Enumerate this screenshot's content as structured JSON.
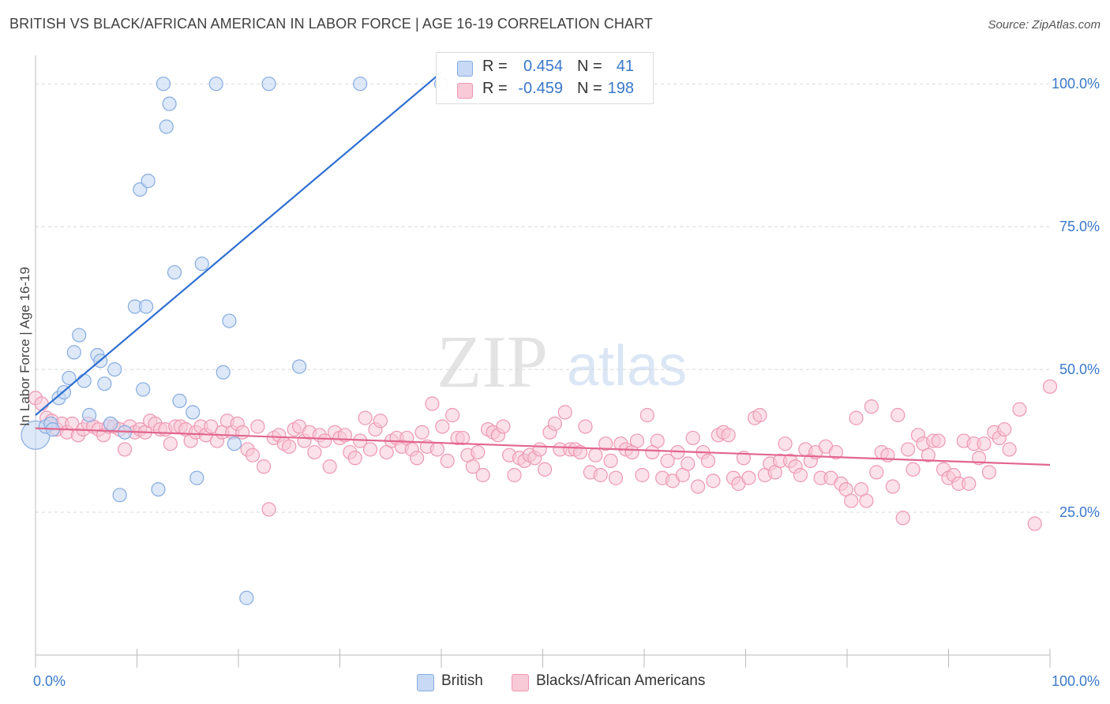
{
  "title": "BRITISH VS BLACK/AFRICAN AMERICAN IN LABOR FORCE | AGE 16-19 CORRELATION CHART",
  "source": "Source: ZipAtlas.com",
  "watermark": {
    "zip": "ZIP",
    "atlas": "atlas"
  },
  "legend": {
    "rows": [
      {
        "r_label": "R =",
        "r_value": "0.454",
        "n_label": "N =",
        "n_value": "41"
      },
      {
        "r_label": "R =",
        "r_value": "-0.459",
        "n_label": "N =",
        "n_value": "198"
      }
    ]
  },
  "bottom_legend": [
    "British",
    "Blacks/African Americans"
  ],
  "colors": {
    "british_fill": "#c7d9f4",
    "british_stroke": "#86ace0",
    "british_line": "#2f6fd0",
    "black_fill": "#f8c9d7",
    "black_stroke": "#ee98b3",
    "black_line": "#e2668f",
    "tick_label": "#3a78c9",
    "grid": "#d8d8d8"
  },
  "chart_data": {
    "type": "scatter",
    "title": "BRITISH VS BLACK/AFRICAN AMERICAN IN LABOR FORCE | AGE 16-19 CORRELATION CHART",
    "xlabel": "",
    "ylabel": "In Labor Force | Age 16-19",
    "xlim": [
      0,
      100
    ],
    "ylim": [
      0,
      105
    ],
    "x_tick_labels": [
      "0.0%",
      "100.0%"
    ],
    "y_ticks": [
      25,
      50,
      75,
      100
    ],
    "y_tick_labels": [
      "25.0%",
      "50.0%",
      "75.0%",
      "100.0%"
    ],
    "grid": true,
    "legend_placement": "top-center",
    "series": [
      {
        "name": "British",
        "r": 0.454,
        "n": 41,
        "trend": {
          "x": [
            0,
            40
          ],
          "y": [
            42,
            102
          ]
        },
        "points": [
          [
            0,
            38.5
          ],
          [
            1,
            40
          ],
          [
            1.5,
            40.5
          ],
          [
            1.7,
            39.5
          ],
          [
            2.3,
            45
          ],
          [
            2.8,
            46
          ],
          [
            3.3,
            48.5
          ],
          [
            3.8,
            53
          ],
          [
            4.3,
            56
          ],
          [
            4.8,
            48
          ],
          [
            5.3,
            42
          ],
          [
            6.1,
            52.5
          ],
          [
            6.4,
            51.5
          ],
          [
            6.8,
            47.5
          ],
          [
            7.4,
            40.5
          ],
          [
            7.8,
            50
          ],
          [
            8.3,
            28
          ],
          [
            8.8,
            39
          ],
          [
            9.8,
            61
          ],
          [
            10.3,
            81.5
          ],
          [
            10.6,
            46.5
          ],
          [
            10.9,
            61
          ],
          [
            11.1,
            83
          ],
          [
            12.1,
            29
          ],
          [
            12.6,
            100
          ],
          [
            12.9,
            92.5
          ],
          [
            13.2,
            96.5
          ],
          [
            13.7,
            67
          ],
          [
            14.2,
            44.5
          ],
          [
            15.5,
            42.5
          ],
          [
            15.9,
            31
          ],
          [
            16.4,
            68.5
          ],
          [
            17.8,
            100
          ],
          [
            18.5,
            49.5
          ],
          [
            19.1,
            58.5
          ],
          [
            19.6,
            37
          ],
          [
            20.8,
            10
          ],
          [
            23,
            100
          ],
          [
            26,
            50.5
          ],
          [
            32,
            100
          ],
          [
            40,
            100
          ]
        ]
      },
      {
        "name": "Blacks/African Americans",
        "r": -0.459,
        "n": 198,
        "trend": {
          "x": [
            0,
            100
          ],
          "y": [
            39.7,
            33.3
          ]
        },
        "points": [
          [
            0,
            45
          ],
          [
            0.6,
            44
          ],
          [
            1.1,
            41.5
          ],
          [
            1.6,
            41
          ],
          [
            2.1,
            39.5
          ],
          [
            2.6,
            40.5
          ],
          [
            3.1,
            39
          ],
          [
            3.6,
            40.5
          ],
          [
            4.2,
            38.5
          ],
          [
            4.7,
            39.5
          ],
          [
            5.2,
            40.5
          ],
          [
            5.7,
            40
          ],
          [
            6.2,
            39.5
          ],
          [
            6.7,
            38.5
          ],
          [
            7.2,
            40
          ],
          [
            7.7,
            40
          ],
          [
            8.3,
            39.5
          ],
          [
            8.8,
            36
          ],
          [
            9.3,
            40
          ],
          [
            9.8,
            39
          ],
          [
            10.3,
            39.5
          ],
          [
            10.8,
            39
          ],
          [
            11.3,
            41
          ],
          [
            11.8,
            40.5
          ],
          [
            12.3,
            39.5
          ],
          [
            12.8,
            39.5
          ],
          [
            13.3,
            37
          ],
          [
            13.8,
            40
          ],
          [
            14.3,
            40
          ],
          [
            14.8,
            39.5
          ],
          [
            15.3,
            37.5
          ],
          [
            15.8,
            39
          ],
          [
            16.3,
            40
          ],
          [
            16.8,
            38.5
          ],
          [
            17.3,
            40
          ],
          [
            17.9,
            37.5
          ],
          [
            18.4,
            39
          ],
          [
            18.9,
            41
          ],
          [
            19.4,
            39
          ],
          [
            19.9,
            40.5
          ],
          [
            20.4,
            39
          ],
          [
            20.9,
            36
          ],
          [
            21.4,
            35
          ],
          [
            21.9,
            40
          ],
          [
            22.5,
            33
          ],
          [
            23,
            25.5
          ],
          [
            23.5,
            38
          ],
          [
            24,
            38.5
          ],
          [
            24.5,
            37
          ],
          [
            25,
            36.5
          ],
          [
            25.5,
            39.5
          ],
          [
            26,
            40
          ],
          [
            26.5,
            37.5
          ],
          [
            27,
            39
          ],
          [
            27.5,
            35.5
          ],
          [
            28,
            38.5
          ],
          [
            28.5,
            37.5
          ],
          [
            29,
            33
          ],
          [
            29.5,
            39
          ],
          [
            30,
            38
          ],
          [
            30.5,
            38.5
          ],
          [
            31,
            35.5
          ],
          [
            31.5,
            34.5
          ],
          [
            32,
            37.5
          ],
          [
            32.5,
            41.5
          ],
          [
            33,
            36
          ],
          [
            33.5,
            39.5
          ],
          [
            34,
            41
          ],
          [
            34.6,
            35.5
          ],
          [
            35.1,
            37.5
          ],
          [
            35.6,
            38
          ],
          [
            36.1,
            36.5
          ],
          [
            36.6,
            38
          ],
          [
            37.1,
            36
          ],
          [
            37.6,
            34.5
          ],
          [
            38.1,
            39
          ],
          [
            38.6,
            36.5
          ],
          [
            39.1,
            44
          ],
          [
            39.6,
            36
          ],
          [
            40.1,
            40
          ],
          [
            40.6,
            34
          ],
          [
            41.1,
            42
          ],
          [
            41.6,
            38
          ],
          [
            42.1,
            38
          ],
          [
            42.6,
            35
          ],
          [
            43.1,
            33
          ],
          [
            43.6,
            35.5
          ],
          [
            44.1,
            31.5
          ],
          [
            44.6,
            39.5
          ],
          [
            45.1,
            39
          ],
          [
            45.6,
            38.5
          ],
          [
            46.1,
            40
          ],
          [
            46.7,
            35
          ],
          [
            47.2,
            31.5
          ],
          [
            47.7,
            34.5
          ],
          [
            48.2,
            34
          ],
          [
            48.7,
            35
          ],
          [
            49.2,
            34.5
          ],
          [
            49.7,
            36
          ],
          [
            50.2,
            32.5
          ],
          [
            50.7,
            39
          ],
          [
            51.2,
            40.5
          ],
          [
            51.7,
            36
          ],
          [
            52.2,
            42.5
          ],
          [
            52.7,
            36
          ],
          [
            53.2,
            36
          ],
          [
            53.7,
            35.5
          ],
          [
            54.2,
            40
          ],
          [
            54.7,
            32
          ],
          [
            55.2,
            35
          ],
          [
            55.7,
            31.5
          ],
          [
            56.2,
            37
          ],
          [
            56.7,
            34
          ],
          [
            57.2,
            31
          ],
          [
            57.7,
            37
          ],
          [
            58.2,
            36
          ],
          [
            58.8,
            35.5
          ],
          [
            59.3,
            37.5
          ],
          [
            59.8,
            31.5
          ],
          [
            60.3,
            42
          ],
          [
            60.8,
            35.5
          ],
          [
            61.3,
            37.5
          ],
          [
            61.8,
            31
          ],
          [
            62.3,
            34
          ],
          [
            62.8,
            30.5
          ],
          [
            63.3,
            35.5
          ],
          [
            63.8,
            31.5
          ],
          [
            64.3,
            33.5
          ],
          [
            64.8,
            38
          ],
          [
            65.3,
            29.5
          ],
          [
            65.8,
            35.5
          ],
          [
            66.3,
            34
          ],
          [
            66.8,
            30.5
          ],
          [
            67.3,
            38.5
          ],
          [
            67.8,
            39
          ],
          [
            68.3,
            38.5
          ],
          [
            68.8,
            31
          ],
          [
            69.3,
            30
          ],
          [
            69.8,
            34.5
          ],
          [
            70.3,
            31
          ],
          [
            70.9,
            41.5
          ],
          [
            71.4,
            42
          ],
          [
            71.9,
            31.5
          ],
          [
            72.4,
            33.5
          ],
          [
            72.9,
            32
          ],
          [
            73.4,
            34
          ],
          [
            73.9,
            37
          ],
          [
            74.4,
            34
          ],
          [
            74.9,
            33
          ],
          [
            75.4,
            31.5
          ],
          [
            75.9,
            36
          ],
          [
            76.4,
            34
          ],
          [
            76.9,
            35.5
          ],
          [
            77.4,
            31
          ],
          [
            77.9,
            36.5
          ],
          [
            78.4,
            31
          ],
          [
            78.9,
            35.5
          ],
          [
            79.4,
            30
          ],
          [
            79.9,
            29
          ],
          [
            80.4,
            27
          ],
          [
            80.9,
            41.5
          ],
          [
            81.4,
            29
          ],
          [
            81.9,
            27
          ],
          [
            82.4,
            43.5
          ],
          [
            82.9,
            32
          ],
          [
            83.4,
            35.5
          ],
          [
            84,
            35
          ],
          [
            84.5,
            29.5
          ],
          [
            85,
            42
          ],
          [
            85.5,
            24
          ],
          [
            86,
            36
          ],
          [
            86.5,
            32.5
          ],
          [
            87,
            38.5
          ],
          [
            87.5,
            37
          ],
          [
            88,
            35
          ],
          [
            88.5,
            37.5
          ],
          [
            89,
            37.5
          ],
          [
            89.5,
            32.5
          ],
          [
            90,
            31
          ],
          [
            90.5,
            31.5
          ],
          [
            91,
            30
          ],
          [
            91.5,
            37.5
          ],
          [
            92,
            30
          ],
          [
            92.5,
            37
          ],
          [
            93,
            34.5
          ],
          [
            93.5,
            37
          ],
          [
            94,
            32
          ],
          [
            94.5,
            39
          ],
          [
            95,
            38
          ],
          [
            95.5,
            39.5
          ],
          [
            96,
            36
          ],
          [
            97,
            43
          ],
          [
            98.5,
            23
          ],
          [
            100,
            47
          ]
        ]
      }
    ]
  }
}
